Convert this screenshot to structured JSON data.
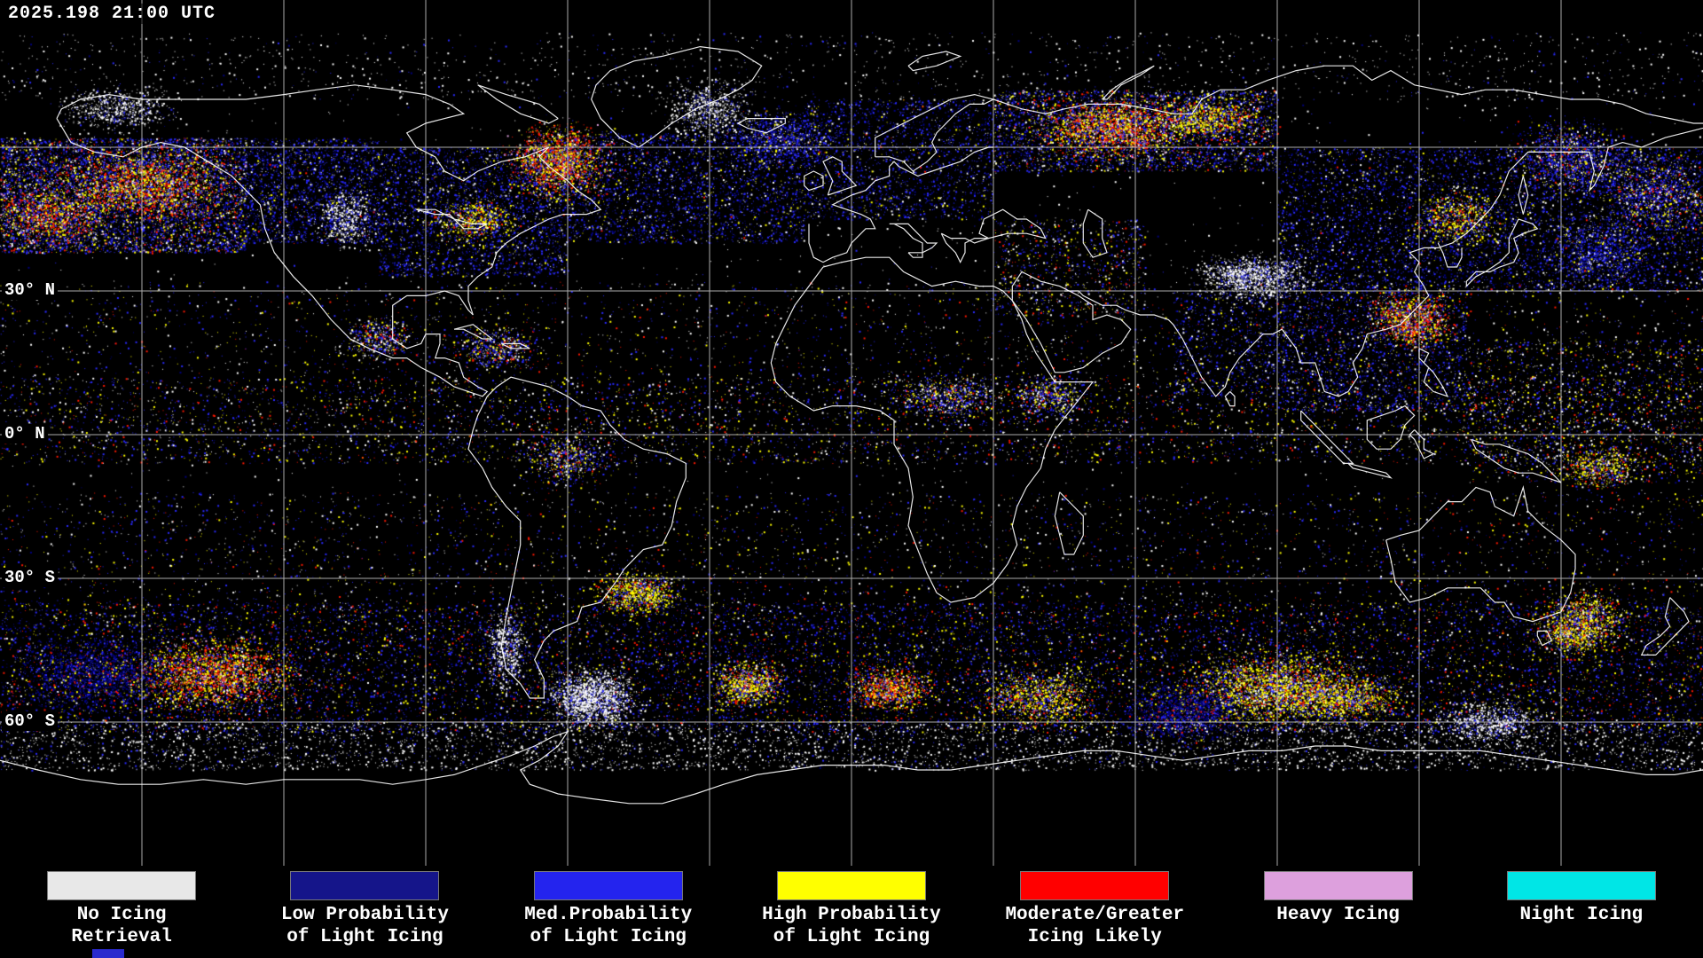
{
  "header": {
    "timestamp": "2025.198 21:00 UTC"
  },
  "map": {
    "lat_labels": [
      "30° N",
      "0° N",
      "30° S",
      "60° S"
    ],
    "palette": {
      "navy": "#000080",
      "blue": "#2a2aff",
      "white": "#ffffff",
      "yellow": "#ffff00",
      "red": "#ff1800",
      "plum": "#dda0dd",
      "cyan": "#00e0e0"
    },
    "grid_color": "#c8c8c8",
    "coast_color": "#ffffff"
  },
  "legend": {
    "items": [
      {
        "name": "no-icing-retrieval",
        "color": "#e8e8e8",
        "line1": "No Icing",
        "line2": "Retrieval"
      },
      {
        "name": "low-prob-light",
        "color": "#15158a",
        "line1": "Low Probability",
        "line2": "of Light Icing"
      },
      {
        "name": "med-prob-light",
        "color": "#2424ee",
        "line1": "Med.Probability",
        "line2": "of Light Icing"
      },
      {
        "name": "high-prob-light",
        "color": "#ffff00",
        "line1": "High Probability",
        "line2": "of Light Icing"
      },
      {
        "name": "moderate-greater",
        "color": "#ff0000",
        "line1": "Moderate/Greater",
        "line2": "Icing Likely"
      },
      {
        "name": "heavy-icing",
        "color": "#dda0dd",
        "line1": "Heavy Icing",
        "line2": ""
      },
      {
        "name": "night-icing",
        "color": "#00e6e6",
        "line1": "Night Icing",
        "line2": ""
      }
    ]
  },
  "footer": {
    "strip_color": "#2a2ace"
  }
}
